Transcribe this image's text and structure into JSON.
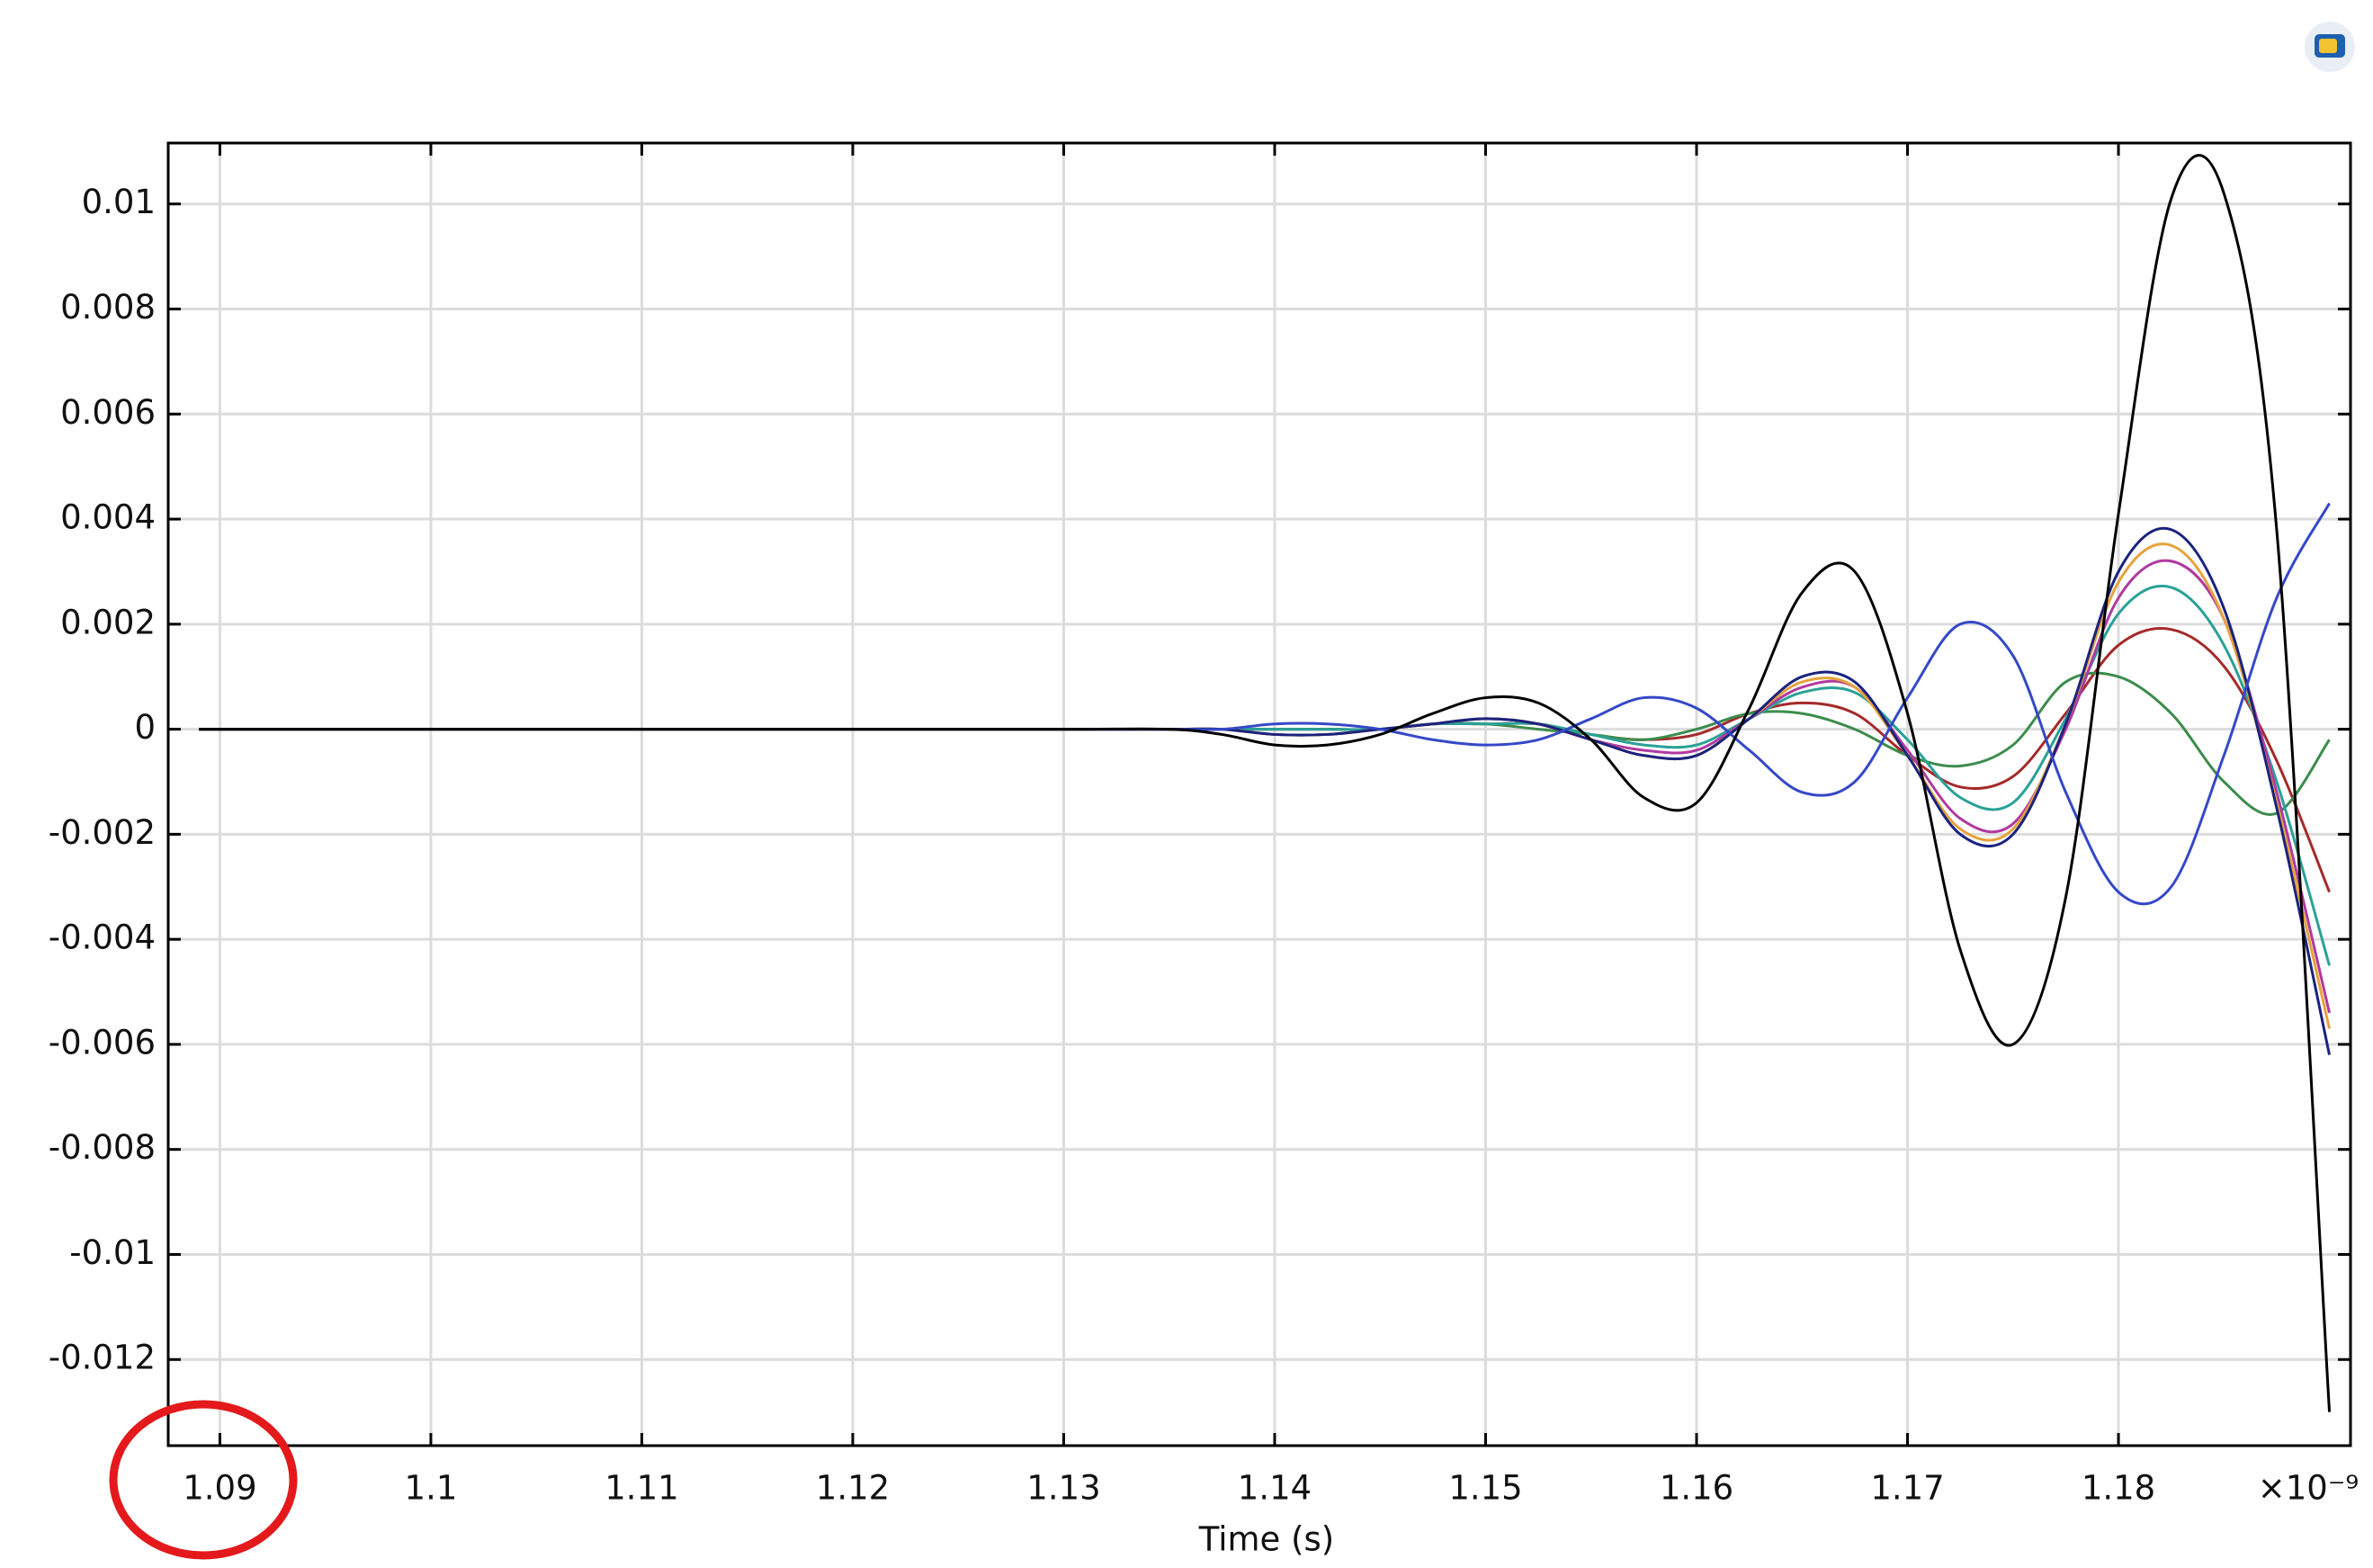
{
  "chart_data": {
    "type": "line",
    "x_label": "Time (s)",
    "x_multiplier": "×10⁻⁹",
    "x": [
      1.089,
      1.1,
      1.11,
      1.12,
      1.13,
      1.135,
      1.1375,
      1.14,
      1.1425,
      1.145,
      1.1475,
      1.15,
      1.1525,
      1.155,
      1.1575,
      1.16,
      1.1625,
      1.165,
      1.1675,
      1.17,
      1.1725,
      1.175,
      1.1775,
      1.18,
      1.1825,
      1.185,
      1.1875,
      1.19
    ],
    "xlim": [
      1.08755,
      1.191
    ],
    "xticks": [
      1.09,
      1.1,
      1.11,
      1.12,
      1.13,
      1.14,
      1.15,
      1.16,
      1.17,
      1.18
    ],
    "ylim": [
      -0.01364,
      0.01116
    ],
    "yticks": [
      0.01,
      0.008,
      0.006,
      0.004,
      0.002,
      0,
      -0.002,
      -0.004,
      -0.006,
      -0.008,
      -0.01,
      -0.012
    ],
    "grid": true,
    "series": [
      {
        "color": "#a52a2a",
        "values": [
          0,
          0,
          0,
          0,
          0,
          0,
          0,
          0,
          0,
          0,
          0.0001,
          0.0001,
          0.0001,
          -0.0001,
          -0.0002,
          -0.0001,
          0.0003,
          0.0005,
          0.0003,
          -0.0005,
          -0.0011,
          -0.0009,
          0.0003,
          0.0016,
          0.0019,
          0.0012,
          -0.0006,
          -0.0031
        ]
      },
      {
        "color": "#3c8c4c",
        "values": [
          0,
          0,
          0,
          0,
          0,
          0,
          0,
          0,
          0,
          0,
          0.0001,
          0.0001,
          0,
          -0.0001,
          -0.0002,
          0,
          0.0003,
          0.0003,
          0,
          -0.0005,
          -0.0007,
          -0.0003,
          0.0009,
          0.001,
          0.0003,
          -0.001,
          -0.0016,
          -0.0002
        ]
      },
      {
        "color": "#2aa198",
        "values": [
          0,
          0,
          0,
          0,
          0,
          0,
          0,
          0,
          0,
          0,
          0.0001,
          0.0001,
          0.0001,
          -0.0001,
          -0.0003,
          -0.0003,
          0.0002,
          0.0007,
          0.0007,
          -0.0002,
          -0.0013,
          -0.0014,
          0.0002,
          0.0022,
          0.0027,
          0.0016,
          -0.001,
          -0.0045
        ]
      },
      {
        "color": "#b03aa0",
        "values": [
          0,
          0,
          0,
          0,
          0,
          0,
          0,
          -0.0001,
          -0.0001,
          0,
          0.0001,
          0.0002,
          0.0001,
          -0.0002,
          -0.0004,
          -0.0004,
          0.0002,
          0.0008,
          0.0008,
          -0.0004,
          -0.0017,
          -0.0018,
          0,
          0.0025,
          0.0032,
          0.0021,
          -0.0012,
          -0.0054
        ]
      },
      {
        "color": "#e6a23c",
        "values": [
          0,
          0,
          0,
          0,
          0,
          0,
          0,
          -0.0001,
          -0.0001,
          0,
          0.0001,
          0.0002,
          0.0001,
          -0.0002,
          -0.0005,
          -0.0005,
          0.0002,
          0.0009,
          0.0008,
          -0.0005,
          -0.0019,
          -0.0019,
          0.0001,
          0.0028,
          0.0035,
          0.0021,
          -0.0014,
          -0.0057
        ]
      },
      {
        "color": "#1a237e",
        "values": [
          0,
          0,
          0,
          0,
          0,
          0,
          0,
          -0.0001,
          -0.0001,
          0,
          0.0001,
          0.0002,
          0.0001,
          -0.0002,
          -0.0005,
          -0.0005,
          0.0002,
          0.001,
          0.0009,
          -0.0005,
          -0.002,
          -0.002,
          0.0001,
          0.003,
          0.0038,
          0.0023,
          -0.0015,
          -0.0062
        ]
      },
      {
        "color": "#3548c8",
        "values": [
          0,
          0,
          0,
          0,
          0,
          0,
          0,
          0.0001,
          0.0001,
          0,
          -0.0002,
          -0.0003,
          -0.0002,
          0.0002,
          0.0006,
          0.0004,
          -0.0004,
          -0.0012,
          -0.001,
          0.0006,
          0.002,
          0.0014,
          -0.0012,
          -0.0031,
          -0.003,
          -0.0005,
          0.0025,
          0.0043
        ]
      },
      {
        "color": "#000000",
        "values": [
          0,
          0,
          0,
          0,
          0,
          0,
          -0.0001,
          -0.0003,
          -0.0003,
          -0.0001,
          0.0003,
          0.0006,
          0.0005,
          -0.0002,
          -0.0013,
          -0.0014,
          0.0004,
          0.0026,
          0.003,
          0.0003,
          -0.0042,
          -0.006,
          -0.0032,
          0.0041,
          0.0101,
          0.0102,
          0.0038,
          -0.013
        ]
      }
    ]
  }
}
